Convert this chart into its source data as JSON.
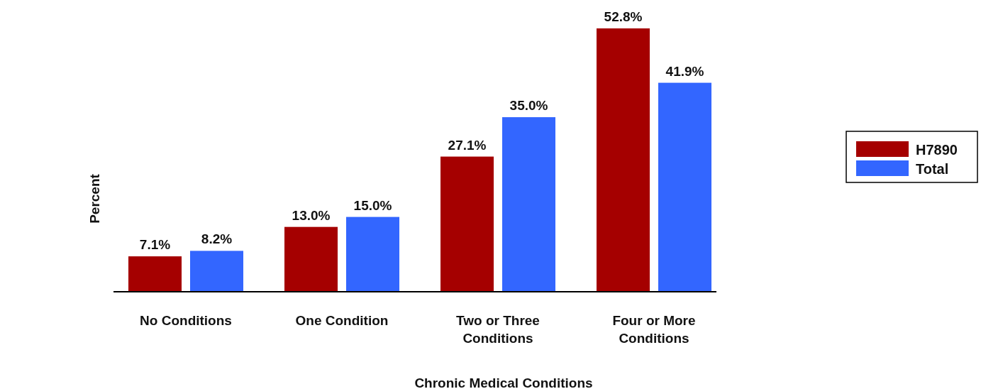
{
  "chart_data": {
    "type": "bar",
    "xlabel": "Chronic Medical Conditions",
    "ylabel": "Percent",
    "categories": [
      "No Conditions",
      "One Condition",
      "Two or Three Conditions",
      "Four or More Conditions"
    ],
    "series": [
      {
        "name": "H7890",
        "color": "#a50000",
        "values": [
          7.1,
          13.0,
          27.1,
          52.8
        ],
        "value_labels": [
          "7.1%",
          "13.0%",
          "27.1%",
          "52.8%"
        ]
      },
      {
        "name": "Total",
        "color": "#3366ff",
        "values": [
          8.2,
          15.0,
          35.0,
          41.9
        ],
        "value_labels": [
          "8.2%",
          "15.0%",
          "35.0%",
          "41.9%"
        ]
      }
    ],
    "relative": false,
    "legend": "right"
  }
}
